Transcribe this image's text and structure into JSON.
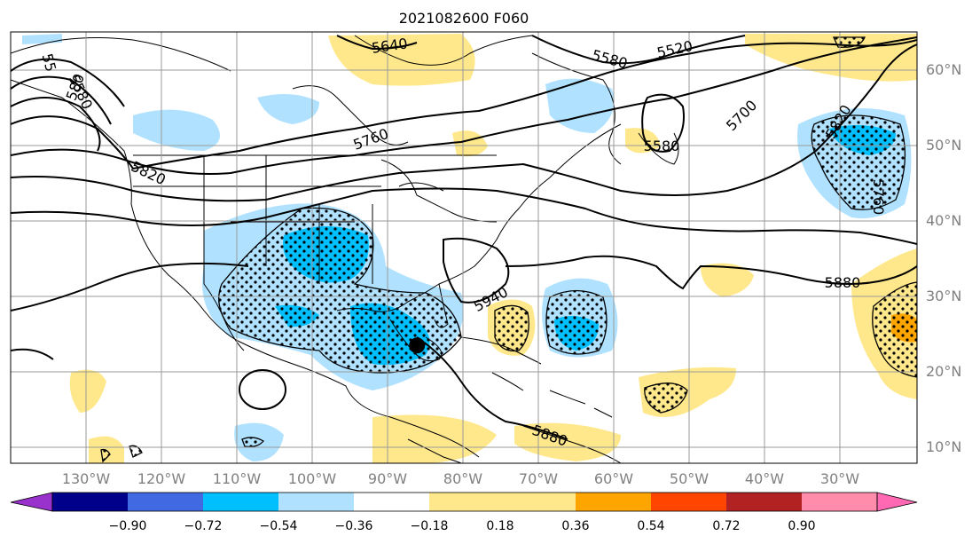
{
  "title": "2021082600 F060",
  "lat_ticks": [
    "60°N",
    "50°N",
    "40°N",
    "30°N",
    "20°N",
    "10°N"
  ],
  "lon_ticks": [
    "130°W",
    "120°W",
    "110°W",
    "100°W",
    "90°W",
    "80°W",
    "70°W",
    "60°W",
    "50°W",
    "40°W",
    "30°W"
  ],
  "colorbar": {
    "ticks": [
      "−0.90",
      "−0.72",
      "−0.54",
      "−0.36",
      "−0.18",
      "0.18",
      "0.36",
      "0.54",
      "0.72",
      "0.90"
    ],
    "colors": [
      "#9932cc",
      "#00008b",
      "#4169e1",
      "#00bfff",
      "#b0e2ff",
      "#ffffff",
      "#ffe88c",
      "#ffa500",
      "#ff4500",
      "#b22222",
      "#ff8caa",
      "#ff69b4"
    ]
  },
  "contour_labels": [
    "5640",
    "5580",
    "5520",
    "5580",
    "5700",
    "5760",
    "5820",
    "5880",
    "5940",
    "5820",
    "5760",
    "5580",
    "5880",
    "55",
    "580"
  ],
  "storm_marker": {
    "lon": -86.2,
    "lat": 23.2
  }
}
